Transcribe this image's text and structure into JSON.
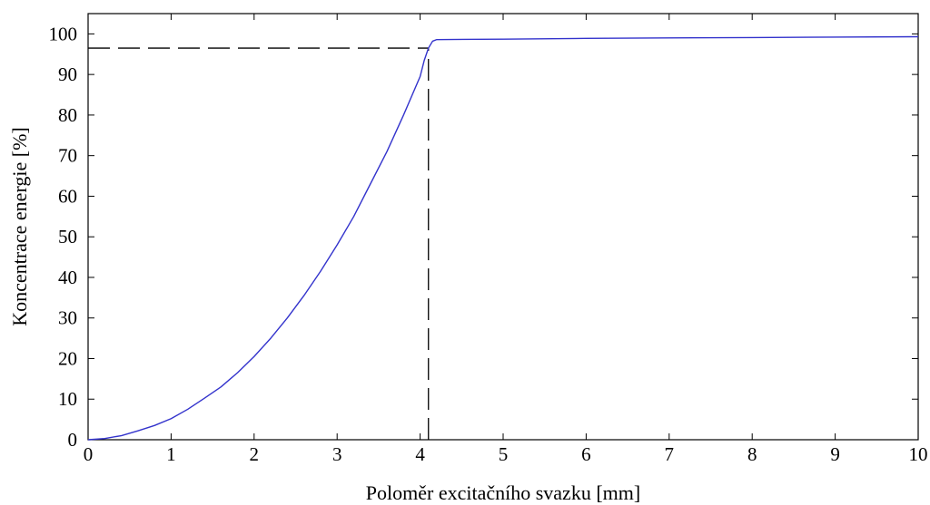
{
  "chart_data": {
    "type": "line",
    "title": "",
    "xlabel": "Poloměr excitačního svazku [mm]",
    "ylabel": "Koncentrace energie [%]",
    "xlim": [
      0,
      10
    ],
    "ylim": [
      0,
      105
    ],
    "x_ticks": [
      0,
      1,
      2,
      3,
      4,
      5,
      6,
      7,
      8,
      9,
      10
    ],
    "y_ticks": [
      0,
      10,
      20,
      30,
      40,
      50,
      60,
      70,
      80,
      90,
      100
    ],
    "grid": false,
    "legend": "none",
    "series": [
      {
        "color": "#3333cc",
        "x": [
          0,
          0.2,
          0.4,
          0.6,
          0.8,
          1.0,
          1.2,
          1.4,
          1.6,
          1.8,
          2.0,
          2.2,
          2.4,
          2.6,
          2.8,
          3.0,
          3.2,
          3.4,
          3.6,
          3.8,
          4.0,
          4.05,
          4.1,
          4.15,
          4.2,
          5,
          6,
          7,
          8,
          9,
          10
        ],
        "y": [
          0,
          0.3,
          1.0,
          2.2,
          3.5,
          5.2,
          7.5,
          10.2,
          13.0,
          16.5,
          20.5,
          25.0,
          30.0,
          35.5,
          41.5,
          48.0,
          55.0,
          63.0,
          71.0,
          80.0,
          89.5,
          93.5,
          96.5,
          98.2,
          98.6,
          98.7,
          98.9,
          99.0,
          99.1,
          99.2,
          99.3
        ]
      }
    ],
    "annotations": [
      {
        "type": "dashed-line",
        "from": [
          0,
          96.5
        ],
        "to": [
          4.1,
          96.5
        ],
        "color": "#000000"
      },
      {
        "type": "dashed-line",
        "from": [
          4.1,
          0
        ],
        "to": [
          4.1,
          96.5
        ],
        "color": "#000000"
      }
    ]
  }
}
